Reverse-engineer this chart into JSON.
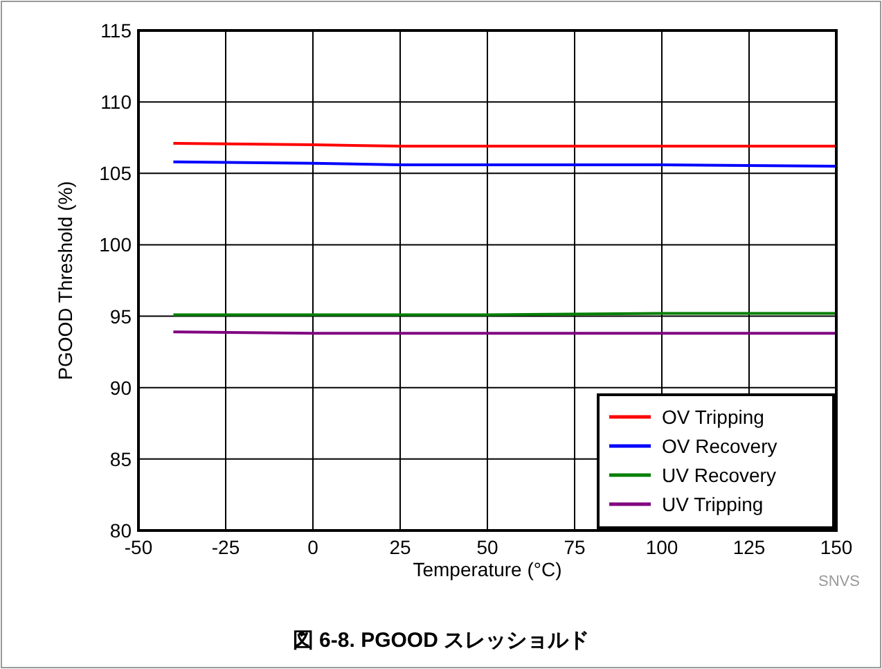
{
  "chart_data": {
    "type": "line",
    "title": "図 6-8. PGOOD スレッショルド",
    "xlabel": "Temperature (°C)",
    "ylabel": "PGOOD Threshold (%)",
    "annotations": [
      "SNVS"
    ],
    "xlim": [
      -50,
      150
    ],
    "xticks": [
      -50,
      -25,
      0,
      25,
      50,
      75,
      100,
      125,
      150
    ],
    "ylim": [
      80,
      115
    ],
    "yticks": [
      80,
      85,
      90,
      95,
      100,
      105,
      110,
      115
    ],
    "grid": true,
    "legend": "bottom right",
    "line_style": "solid",
    "series": [
      {
        "name": "OV Tripping",
        "color": "#ff0000",
        "x": [
          -40,
          0,
          25,
          50,
          100,
          150
        ],
        "values": [
          107.1,
          107.0,
          106.9,
          106.9,
          106.9,
          106.9
        ]
      },
      {
        "name": "OV Recovery",
        "color": "#0000ff",
        "x": [
          -40,
          0,
          25,
          50,
          100,
          150
        ],
        "values": [
          105.8,
          105.7,
          105.6,
          105.6,
          105.6,
          105.5
        ]
      },
      {
        "name": "UV Recovery",
        "color": "#008000",
        "x": [
          -40,
          0,
          25,
          50,
          100,
          150
        ],
        "values": [
          95.1,
          95.1,
          95.1,
          95.1,
          95.2,
          95.2
        ]
      },
      {
        "name": "UV Tripping",
        "color": "#800080",
        "x": [
          -40,
          0,
          25,
          50,
          100,
          150
        ],
        "values": [
          93.9,
          93.8,
          93.8,
          93.8,
          93.8,
          93.8
        ]
      }
    ]
  }
}
